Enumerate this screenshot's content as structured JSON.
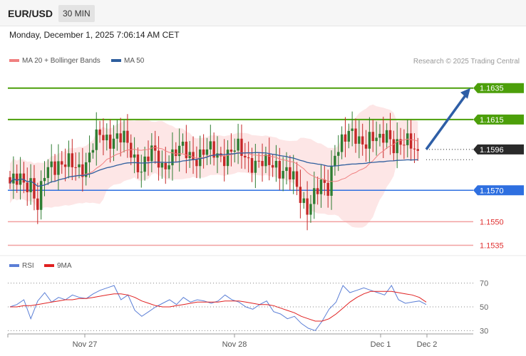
{
  "header": {
    "symbol": "EUR/USD",
    "timeframe": "30 MIN"
  },
  "datetime": "Monday, December 1, 2025 7:06:14 AM CET",
  "legend": {
    "ma20": {
      "label": "MA 20 + Bollinger Bands",
      "color": "#f08080"
    },
    "ma50": {
      "label": "MA 50",
      "color": "#2e5e9e"
    }
  },
  "credit": "Research © 2025 Trading Central",
  "colors": {
    "green_level": "#4c9f0a",
    "blue_level": "#2e6fe0",
    "red_level": "#e03030",
    "candle_up": "#2e7d32",
    "candle_down": "#c62828",
    "band_fill": "#fde2e2",
    "arrow": "#2e5ea6",
    "current_label": "#2a2a2a"
  },
  "chart_data": [
    {
      "type": "candlestick",
      "ylim": [
        1.1528,
        1.1648
      ],
      "levels": [
        {
          "value": 1.1635,
          "label": "1.1635",
          "kind": "resistance"
        },
        {
          "value": 1.1615,
          "label": "1.1615",
          "kind": "resistance"
        },
        {
          "value": 1.1596,
          "label": "1.1596",
          "kind": "current"
        },
        {
          "value": 1.157,
          "label": "1.1570",
          "kind": "pivot"
        },
        {
          "value": 1.155,
          "label": "1.1550",
          "kind": "support"
        },
        {
          "value": 1.1535,
          "label": "1.1535",
          "kind": "support"
        }
      ],
      "x_ticks": [
        "Nov 27",
        "Nov 28",
        "Dec 1",
        "Dec 2"
      ],
      "close_path": [
        [
          0,
          1.157
        ],
        [
          3,
          1.158
        ],
        [
          6,
          1.1575
        ],
        [
          8,
          1.1555
        ],
        [
          10,
          1.158
        ],
        [
          12,
          1.159
        ],
        [
          16,
          1.1584
        ],
        [
          22,
          1.1588
        ],
        [
          26,
          1.1604
        ],
        [
          30,
          1.1605
        ],
        [
          33,
          1.16
        ],
        [
          35,
          1.1594
        ],
        [
          38,
          1.1586
        ],
        [
          41,
          1.1592
        ],
        [
          44,
          1.1586
        ],
        [
          46,
          1.1592
        ],
        [
          50,
          1.1594
        ],
        [
          54,
          1.1593
        ],
        [
          58,
          1.1593
        ],
        [
          62,
          1.1594
        ],
        [
          66,
          1.1594
        ],
        [
          70,
          1.159
        ],
        [
          74,
          1.1584
        ],
        [
          77,
          1.1588
        ],
        [
          80,
          1.1582
        ],
        [
          82,
          1.1574
        ],
        [
          84,
          1.1565
        ],
        [
          86,
          1.1562
        ],
        [
          88,
          1.1568
        ],
        [
          90,
          1.157
        ],
        [
          92,
          1.157
        ],
        [
          94,
          1.1598
        ],
        [
          96,
          1.1602
        ],
        [
          100,
          1.1603
        ],
        [
          104,
          1.1604
        ],
        [
          107,
          1.1598
        ],
        [
          109,
          1.1608
        ],
        [
          111,
          1.1602
        ],
        [
          114,
          1.1597
        ],
        [
          116,
          1.1598
        ],
        [
          118,
          1.1596
        ]
      ],
      "projection": {
        "from": 1.1596,
        "to": 1.1635
      }
    },
    {
      "type": "line",
      "title": "RSI",
      "ylim": [
        20,
        80
      ],
      "y_ticks": [
        70,
        50,
        30
      ],
      "series": [
        {
          "name": "RSI",
          "color": "#5b7fd6",
          "values": [
            50,
            52,
            56,
            40,
            55,
            62,
            54,
            58,
            56,
            60,
            58,
            57,
            61,
            64,
            66,
            68,
            56,
            60,
            47,
            42,
            46,
            50,
            53,
            56,
            52,
            58,
            54,
            56,
            55,
            53,
            55,
            60,
            56,
            54,
            50,
            48,
            52,
            55,
            46,
            44,
            40,
            42,
            36,
            32,
            30,
            38,
            48,
            54,
            68,
            62,
            64,
            66,
            64,
            62,
            60,
            68,
            56,
            53,
            54,
            55,
            52
          ]
        },
        {
          "name": "9MA",
          "color": "#e02020",
          "values": [
            50,
            50,
            51,
            51,
            52,
            53,
            54,
            55,
            56,
            56,
            57,
            57,
            58,
            59,
            60,
            61,
            61,
            60,
            58,
            55,
            53,
            51,
            50,
            50,
            51,
            52,
            53,
            54,
            54,
            54,
            54,
            55,
            55,
            55,
            54,
            53,
            52,
            52,
            51,
            49,
            47,
            45,
            42,
            40,
            38,
            38,
            40,
            44,
            49,
            54,
            58,
            61,
            63,
            63,
            63,
            63,
            62,
            61,
            60,
            58,
            54
          ]
        }
      ]
    }
  ],
  "rsi_legend": {
    "rsi": {
      "label": "RSI",
      "color": "#5b7fd6"
    },
    "ma9": {
      "label": "9MA",
      "color": "#e02020"
    }
  }
}
